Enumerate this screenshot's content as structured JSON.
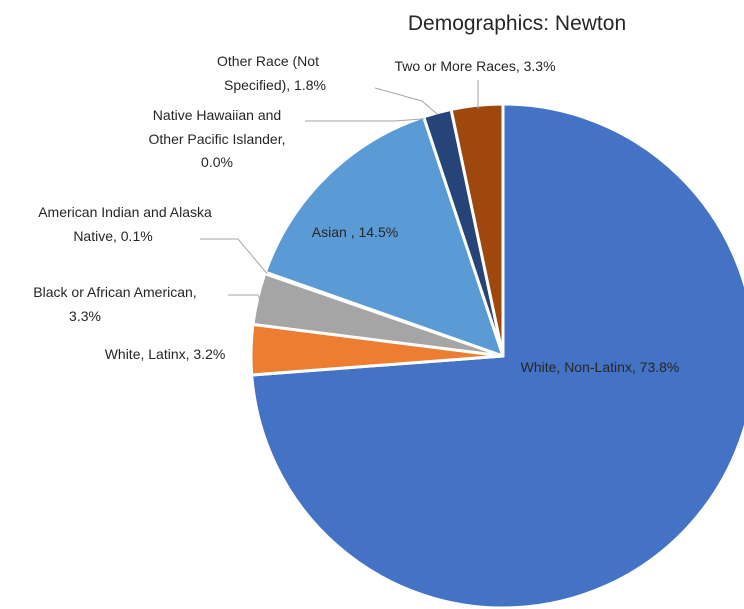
{
  "chart_data": {
    "type": "pie",
    "title": "Demographics: Newton",
    "slices": [
      {
        "name": "White, Non-Latinx",
        "value": 73.8,
        "label": "White, Non-Latinx, 73.8%",
        "color": "#4472c4"
      },
      {
        "name": "White, Latinx",
        "value": 3.2,
        "label": "White, Latinx, 3.2%",
        "color": "#ed7d31"
      },
      {
        "name": "Black or African American",
        "value": 3.3,
        "label": "Black or African American, 3.3%",
        "color": "#a5a5a5"
      },
      {
        "name": "American Indian and Alaska Native",
        "value": 0.1,
        "label": "American Indian and Alaska Native, 0.1%",
        "color": "#ffc000"
      },
      {
        "name": "Asian ",
        "value": 14.5,
        "label": "Asian , 14.5%",
        "color": "#5b9bd5"
      },
      {
        "name": "Native Hawaiian and Other Pacific Islander",
        "value": 0.0,
        "label": "Native Hawaiian and Other Pacific Islander, 0.0%",
        "color": "#70ad47"
      },
      {
        "name": "Other Race (Not Specified)",
        "value": 1.8,
        "label": "Other Race (Not Specified), 1.8%",
        "color": "#264478"
      },
      {
        "name": "Two or More Races",
        "value": 3.3,
        "label": "Two or More Races, 3.3%",
        "color": "#9e480e"
      }
    ]
  }
}
